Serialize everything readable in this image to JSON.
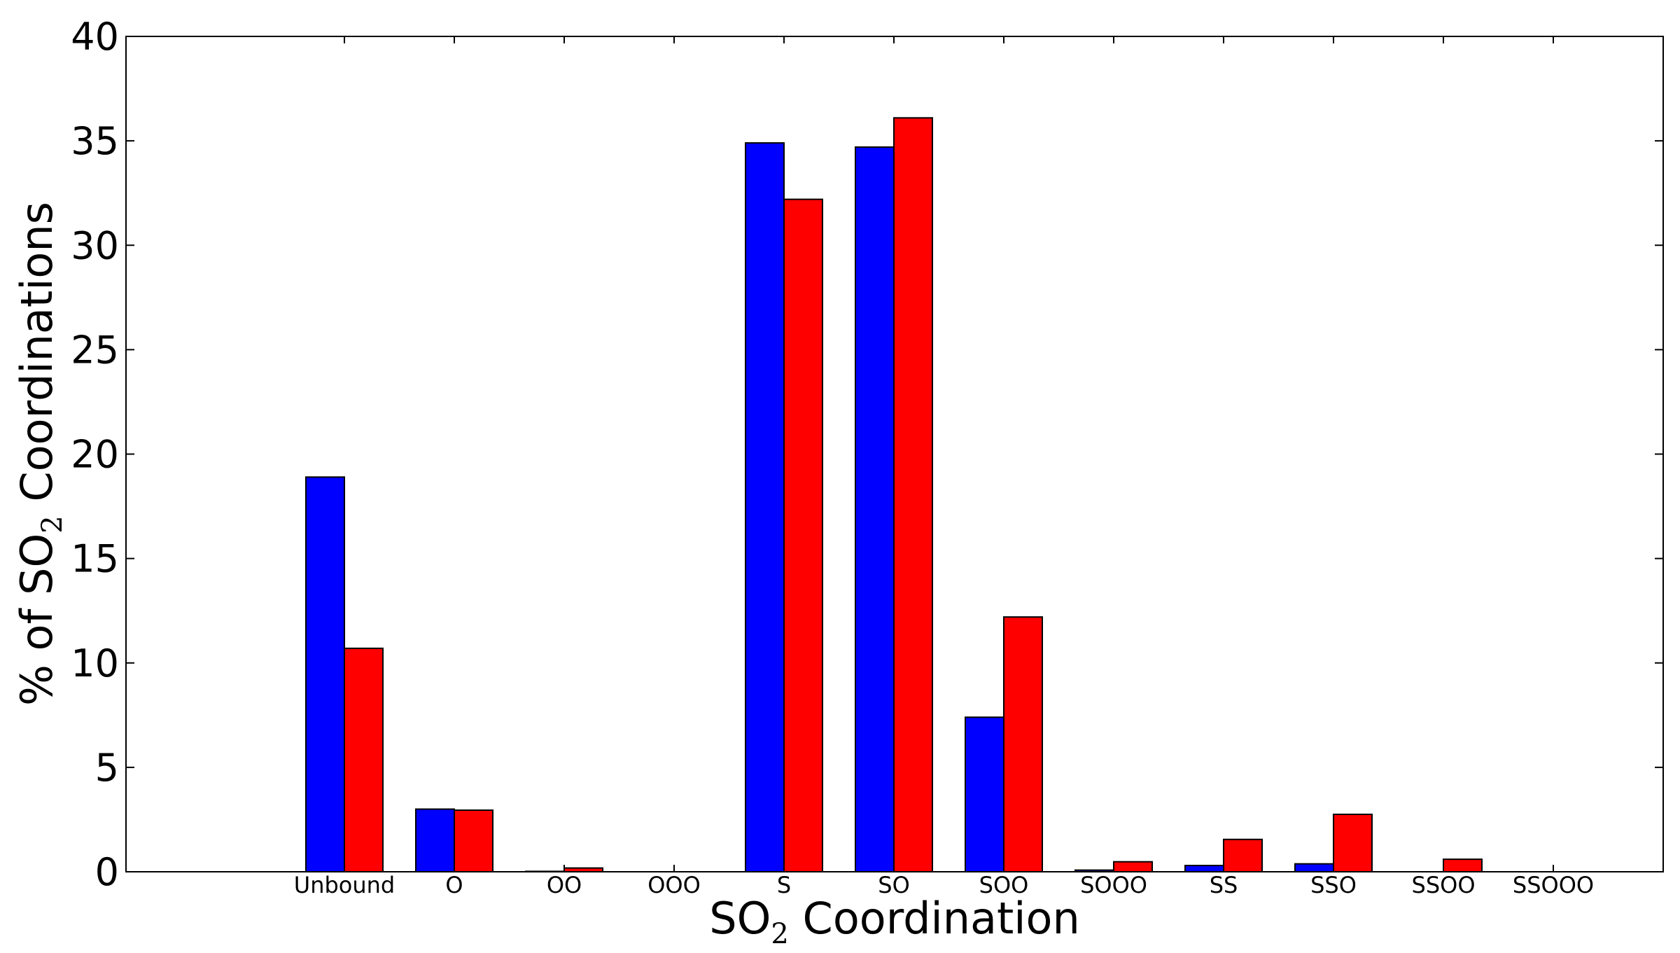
{
  "chart_data": {
    "type": "bar",
    "categories": [
      "Unbound",
      "O",
      "OO",
      "OOO",
      "S",
      "SO",
      "SOO",
      "SOOO",
      "SS",
      "SSO",
      "SSOO",
      "SSOOO"
    ],
    "series": [
      {
        "color": "#0000ff",
        "values": [
          18.9,
          3.0,
          0.02,
          0.0,
          34.9,
          34.7,
          7.4,
          0.08,
          0.3,
          0.38,
          0.0,
          0.0
        ]
      },
      {
        "color": "#ff0000",
        "values": [
          10.7,
          2.95,
          0.18,
          0.0,
          32.2,
          36.1,
          12.2,
          0.48,
          1.55,
          2.75,
          0.6,
          0.0
        ]
      }
    ],
    "xlabel": {
      "prefix": "SO",
      "sub": "2",
      "suffix": " Coordination"
    },
    "ylabel": {
      "prefix": "% of SO",
      "sub": "2",
      "suffix": " Coordinations"
    },
    "ylim": [
      0,
      40
    ],
    "yticks": [
      0,
      5,
      10,
      15,
      20,
      25,
      30,
      35,
      40
    ],
    "grid": false,
    "legend": "none"
  }
}
